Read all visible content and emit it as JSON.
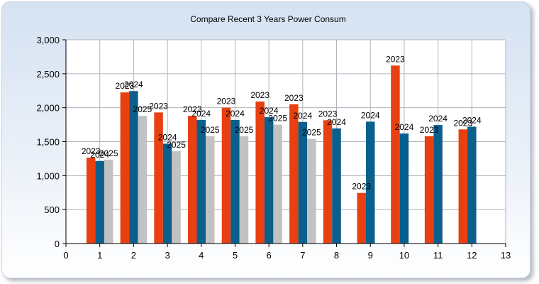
{
  "chart_data": {
    "type": "bar",
    "title": "Compare Recent 3 Years Power Consum",
    "xlabel": "",
    "ylabel": "",
    "xlim": [
      0,
      13
    ],
    "ylim": [
      0,
      3000
    ],
    "x_ticks": [
      "0",
      "1",
      "2",
      "3",
      "4",
      "5",
      "6",
      "7",
      "8",
      "9",
      "10",
      "11",
      "12",
      "13"
    ],
    "y_ticks": [
      "0",
      "500",
      "1,000",
      "1,500",
      "2,000",
      "2,500",
      "3,000"
    ],
    "grid": true,
    "legend": "none",
    "series": [
      {
        "label": "2023",
        "color": "#e84010",
        "points": [
          [
            1,
            1265
          ],
          [
            2,
            2225
          ],
          [
            3,
            1930
          ],
          [
            4,
            1880
          ],
          [
            5,
            2000
          ],
          [
            6,
            2090
          ],
          [
            7,
            2050
          ],
          [
            8,
            1815
          ],
          [
            9,
            745
          ],
          [
            10,
            2620
          ],
          [
            11,
            1580
          ],
          [
            12,
            1680
          ]
        ]
      },
      {
        "label": "2024",
        "color": "#0a5f8c",
        "points": [
          [
            1,
            1215
          ],
          [
            2,
            2245
          ],
          [
            3,
            1470
          ],
          [
            4,
            1820
          ],
          [
            5,
            1820
          ],
          [
            6,
            1860
          ],
          [
            7,
            1790
          ],
          [
            8,
            1695
          ],
          [
            9,
            1795
          ],
          [
            10,
            1620
          ],
          [
            11,
            1745
          ],
          [
            12,
            1720
          ]
        ]
      },
      {
        "label": "2025",
        "color": "#c2c2c2",
        "points": [
          [
            1,
            1235
          ],
          [
            2,
            1880
          ],
          [
            3,
            1360
          ],
          [
            4,
            1580
          ],
          [
            5,
            1580
          ],
          [
            6,
            1750
          ],
          [
            7,
            1540
          ]
        ]
      }
    ]
  }
}
